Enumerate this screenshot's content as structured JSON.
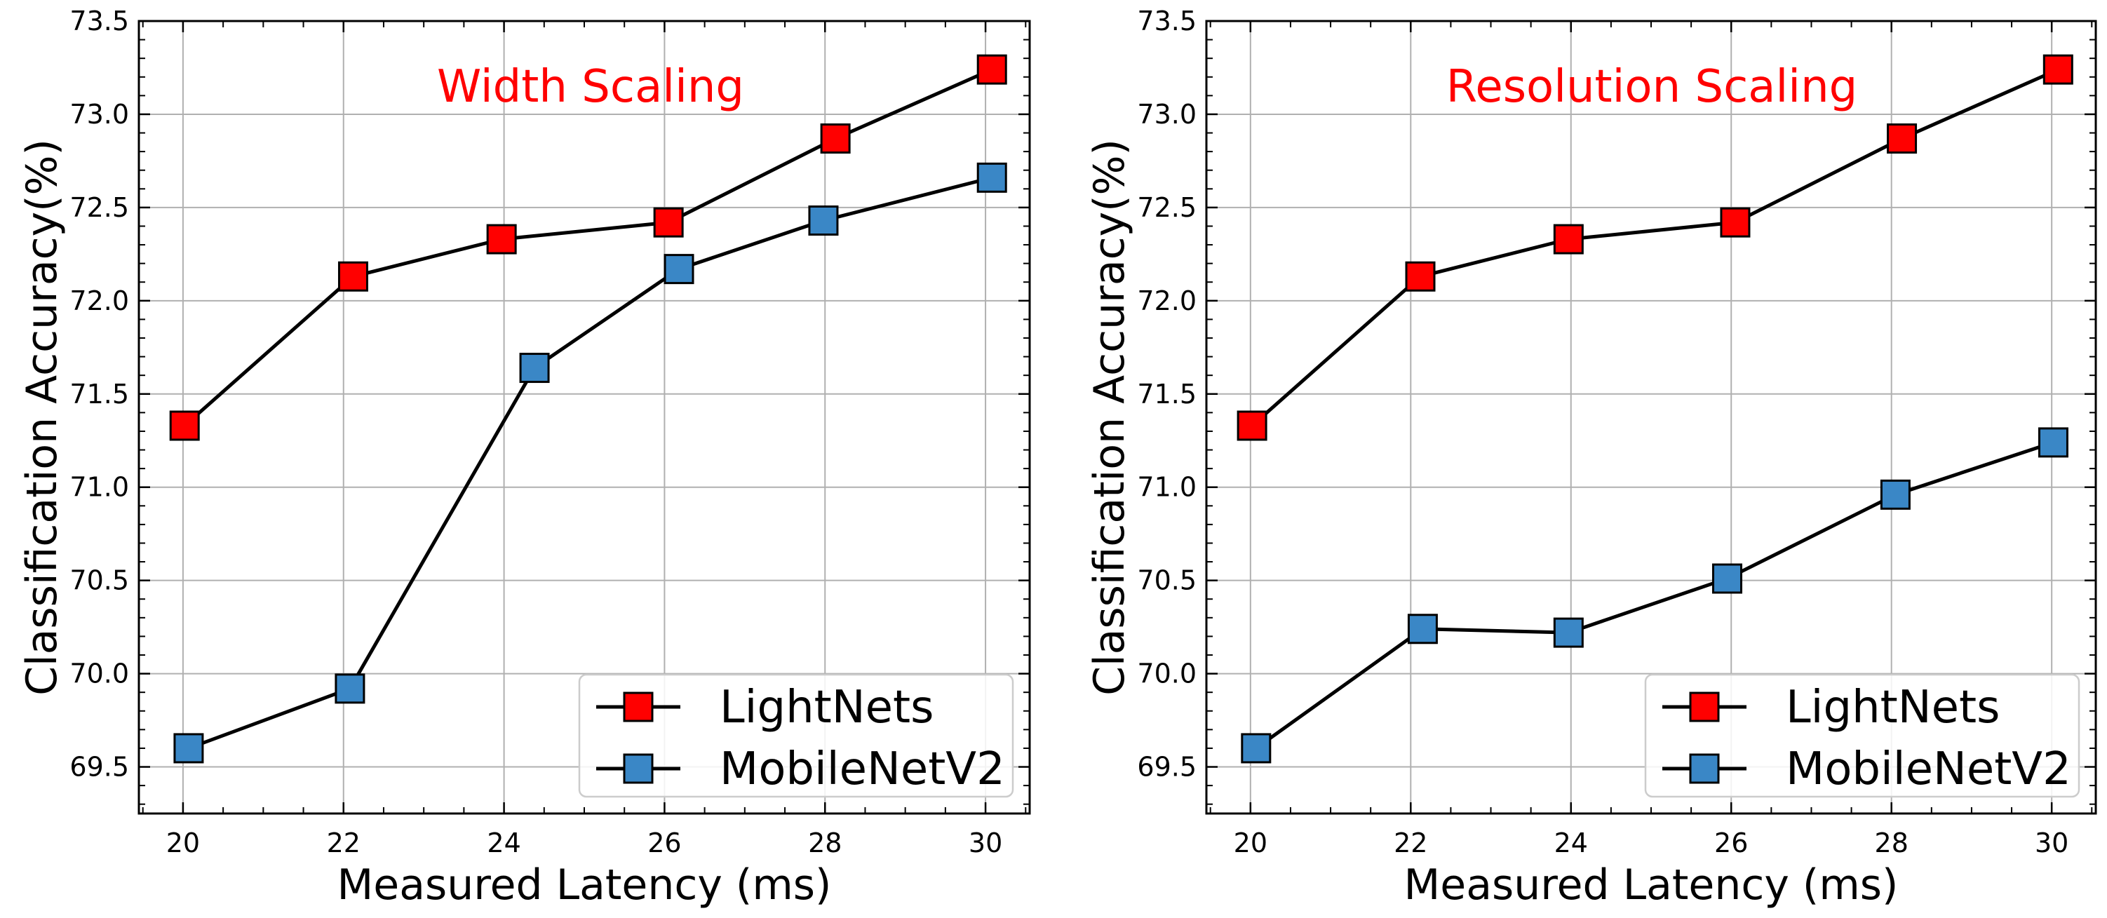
{
  "figure": {
    "colors": {
      "lightnets": "#ff0000",
      "mobilenetv2": "#3a87c6",
      "annotation": "#ff0000",
      "line": "#000000",
      "grid": "#b0b0b0"
    }
  },
  "chart_data": [
    {
      "type": "line",
      "title": "",
      "annotation": "Width Scaling",
      "xlabel": "Measured Latency (ms)",
      "ylabel": "Classification Accuracy(%)",
      "xlim": [
        19.45,
        30.55
      ],
      "ylim": [
        69.25,
        73.5
      ],
      "xticks": [
        20,
        22,
        24,
        26,
        28,
        30
      ],
      "yticks": [
        69.5,
        70.0,
        70.5,
        71.0,
        71.5,
        72.0,
        72.5,
        73.0,
        73.5
      ],
      "grid": true,
      "legend_position": "lower-right",
      "series": [
        {
          "name": "LightNets",
          "color": "#ff0000",
          "marker": "square",
          "x": [
            20.02,
            22.12,
            23.97,
            26.05,
            28.13,
            30.08
          ],
          "y": [
            71.33,
            72.13,
            72.33,
            72.42,
            72.87,
            73.24
          ]
        },
        {
          "name": "MobileNetV2",
          "color": "#3a87c6",
          "marker": "square",
          "x": [
            20.07,
            22.08,
            24.38,
            26.18,
            27.98,
            30.08
          ],
          "y": [
            69.6,
            69.92,
            71.64,
            72.17,
            72.43,
            72.66
          ]
        }
      ]
    },
    {
      "type": "line",
      "title": "",
      "annotation": "Resolution Scaling",
      "xlabel": "Measured Latency (ms)",
      "ylabel": "Classification Accuracy(%)",
      "xlim": [
        19.45,
        30.55
      ],
      "ylim": [
        69.25,
        73.5
      ],
      "xticks": [
        20,
        22,
        24,
        26,
        28,
        30
      ],
      "yticks": [
        69.5,
        70.0,
        70.5,
        71.0,
        71.5,
        72.0,
        72.5,
        73.0,
        73.5
      ],
      "grid": true,
      "legend_position": "lower-right",
      "series": [
        {
          "name": "LightNets",
          "color": "#ff0000",
          "marker": "square",
          "x": [
            20.02,
            22.12,
            23.97,
            26.05,
            28.13,
            30.08
          ],
          "y": [
            71.33,
            72.13,
            72.33,
            72.42,
            72.87,
            73.24
          ]
        },
        {
          "name": "MobileNetV2",
          "color": "#3a87c6",
          "marker": "square",
          "x": [
            20.07,
            22.15,
            23.97,
            25.95,
            28.05,
            30.02
          ],
          "y": [
            69.6,
            70.24,
            70.22,
            70.51,
            70.96,
            71.24
          ]
        }
      ]
    }
  ]
}
